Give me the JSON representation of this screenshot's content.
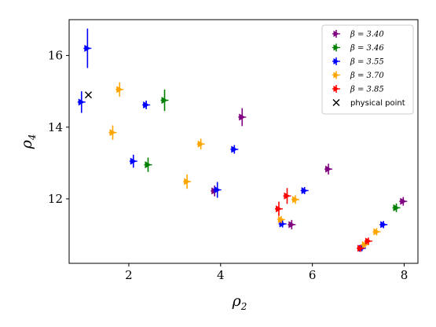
{
  "chart_data": {
    "type": "scatter",
    "xlabel": "ρ",
    "xlabel_sub": "2",
    "ylabel": "ρ",
    "ylabel_sub": "4",
    "xlim": [
      0.7,
      8.3
    ],
    "ylim": [
      10.2,
      17.0
    ],
    "xticks": [
      2,
      4,
      6,
      8
    ],
    "yticks": [
      12,
      14,
      16
    ],
    "grid": false,
    "legend_position": "top-right",
    "series": [
      {
        "name": "β = 3.40",
        "color": "#800080",
        "points": [
          {
            "x": 3.87,
            "y": 12.22,
            "yerr": 0.15
          },
          {
            "x": 4.47,
            "y": 14.28,
            "yerr": 0.25
          },
          {
            "x": 5.55,
            "y": 11.28,
            "yerr": 0.13
          },
          {
            "x": 6.35,
            "y": 12.83,
            "yerr": 0.15
          },
          {
            "x": 7.98,
            "y": 11.93,
            "yerr": 0.12
          }
        ]
      },
      {
        "name": "β = 3.46",
        "color": "#008000",
        "points": [
          {
            "x": 2.42,
            "y": 12.95,
            "yerr": 0.2
          },
          {
            "x": 2.78,
            "y": 14.75,
            "yerr": 0.3
          },
          {
            "x": 7.83,
            "y": 11.75,
            "yerr": 0.12
          }
        ]
      },
      {
        "name": "β = 3.55",
        "color": "#0000ff",
        "points": [
          {
            "x": 0.97,
            "y": 14.7,
            "yerr": 0.3
          },
          {
            "x": 1.1,
            "y": 16.2,
            "yerr": 0.55
          },
          {
            "x": 2.1,
            "y": 13.05,
            "yerr": 0.18
          },
          {
            "x": 2.38,
            "y": 14.62,
            "yerr": 0.12
          },
          {
            "x": 3.93,
            "y": 12.25,
            "yerr": 0.22
          },
          {
            "x": 4.3,
            "y": 13.38,
            "yerr": 0.12
          },
          {
            "x": 5.35,
            "y": 11.3,
            "yerr": 0.1
          },
          {
            "x": 5.83,
            "y": 12.23,
            "yerr": 0.1
          },
          {
            "x": 7.08,
            "y": 10.62,
            "yerr": 0.08
          },
          {
            "x": 7.55,
            "y": 11.28,
            "yerr": 0.1
          }
        ]
      },
      {
        "name": "β = 3.70",
        "color": "#ffa500",
        "points": [
          {
            "x": 1.65,
            "y": 13.85,
            "yerr": 0.2
          },
          {
            "x": 1.8,
            "y": 15.05,
            "yerr": 0.2
          },
          {
            "x": 3.27,
            "y": 12.48,
            "yerr": 0.2
          },
          {
            "x": 3.57,
            "y": 13.53,
            "yerr": 0.15
          },
          {
            "x": 5.32,
            "y": 11.42,
            "yerr": 0.1
          },
          {
            "x": 5.63,
            "y": 11.98,
            "yerr": 0.12
          },
          {
            "x": 7.15,
            "y": 10.72,
            "yerr": 0.08
          },
          {
            "x": 7.4,
            "y": 11.08,
            "yerr": 0.1
          }
        ]
      },
      {
        "name": "β = 3.85",
        "color": "#ff0000",
        "points": [
          {
            "x": 5.27,
            "y": 11.72,
            "yerr": 0.2
          },
          {
            "x": 5.45,
            "y": 12.08,
            "yerr": 0.22
          },
          {
            "x": 7.05,
            "y": 10.62,
            "yerr": 0.1
          },
          {
            "x": 7.22,
            "y": 10.82,
            "yerr": 0.1
          }
        ]
      },
      {
        "name": "physical point",
        "color": "#000000",
        "marker": "x",
        "points": [
          {
            "x": 1.12,
            "y": 14.9
          }
        ]
      }
    ]
  }
}
